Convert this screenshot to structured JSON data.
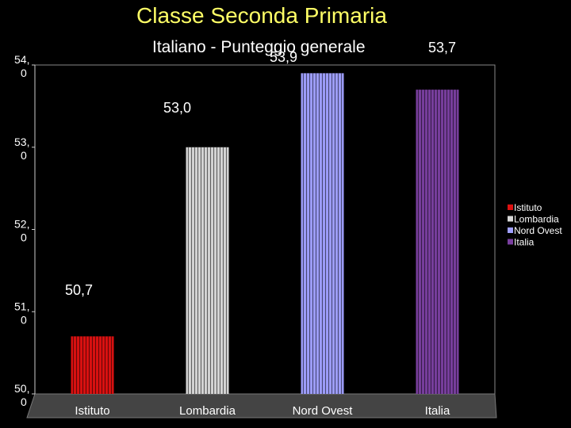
{
  "slide": {
    "title": "Classe Seconda Primaria"
  },
  "chart_data": {
    "type": "bar",
    "title": "Italiano - Punteggio generale",
    "categories": [
      "Istituto",
      "Lombardia",
      "Nord Ovest",
      "Italia"
    ],
    "values": [
      50.7,
      53.0,
      53.9,
      53.7
    ],
    "data_labels": [
      "50,7",
      "53,0",
      "53,9",
      "53,7"
    ],
    "colors": [
      "#dd1111",
      "#d8d8d8",
      "#a0a0ff",
      "#7a3fa0"
    ],
    "ylim": [
      50.0,
      54.0
    ],
    "yticks": [
      {
        "value": 54.0,
        "label": "54,\n0"
      },
      {
        "value": 53.0,
        "label": "53,\n0"
      },
      {
        "value": 52.0,
        "label": "52,\n0"
      },
      {
        "value": 51.0,
        "label": "51,\n0"
      },
      {
        "value": 50.0,
        "label": "50,\n0"
      }
    ],
    "legend": {
      "position": "right",
      "entries": [
        "Istituto",
        "Lombardia",
        "Nord Ovest",
        "Italia"
      ]
    },
    "grid": false
  }
}
